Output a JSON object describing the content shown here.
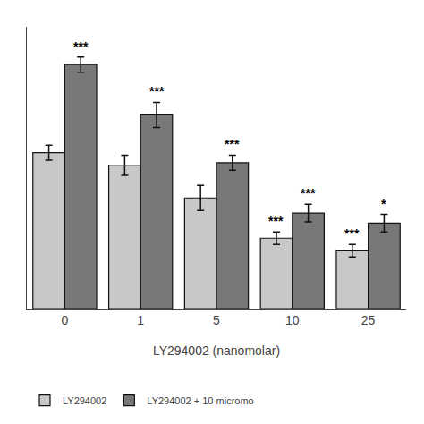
{
  "chart_data": {
    "type": "bar",
    "xlabel": "LY294002 (nanomolar)",
    "categories": [
      "0",
      "1",
      "5",
      "10",
      "25"
    ],
    "series": [
      {
        "name": "LY294002",
        "color": "#c8c8c8",
        "values": [
          0.62,
          0.57,
          0.44,
          0.28,
          0.23
        ],
        "errors": [
          0.03,
          0.04,
          0.05,
          0.025,
          0.025
        ],
        "annotations": [
          null,
          null,
          null,
          "***",
          "***"
        ]
      },
      {
        "name": "LY294002 + 10 micromo",
        "color": "#787878",
        "values": [
          0.97,
          0.77,
          0.58,
          0.38,
          0.34
        ],
        "errors": [
          0.03,
          0.05,
          0.03,
          0.035,
          0.035
        ],
        "annotations": [
          "***",
          "***",
          "***",
          "***",
          "*"
        ]
      }
    ],
    "ylim": [
      0,
      1.12
    ],
    "tick_labels": "x",
    "grid": false,
    "legend": "lower left"
  }
}
